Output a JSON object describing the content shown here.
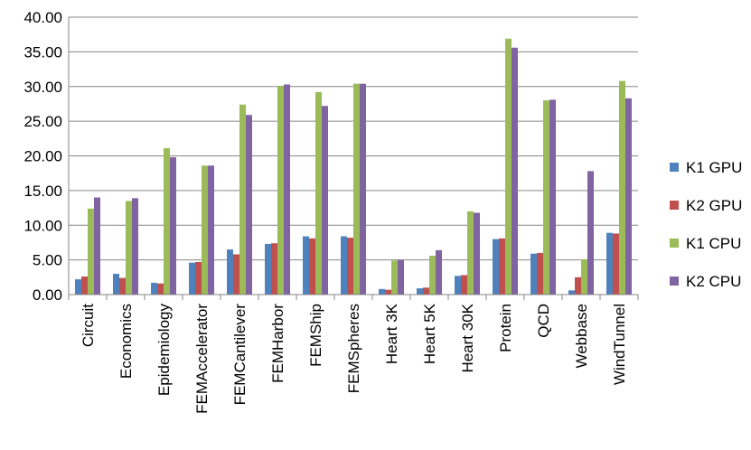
{
  "chart_data": {
    "type": "bar",
    "title": "",
    "xlabel": "",
    "ylabel": "",
    "ylim": [
      0,
      40
    ],
    "yticks": [
      "0.00",
      "5.00",
      "10.00",
      "15.00",
      "20.00",
      "25.00",
      "30.00",
      "35.00",
      "40.00"
    ],
    "grid": "horizontal",
    "legend": "right",
    "categories": [
      "Circuit",
      "Economics",
      "Epidemiology",
      "FEMAccelerator",
      "FEMCantilever",
      "FEMHarbor",
      "FEMShip",
      "FEMSpheres",
      "Heart 3K",
      "Heart 5K",
      "Heart 30K",
      "Protein",
      "QCD",
      "Webbase",
      "WindTunnel"
    ],
    "series": [
      {
        "name": "K1 GPU",
        "color": "#4F81BD",
        "values": [
          2.2,
          3.0,
          1.7,
          4.6,
          6.5,
          7.3,
          8.4,
          8.4,
          0.8,
          0.9,
          2.7,
          8.0,
          5.9,
          0.6,
          8.9
        ]
      },
      {
        "name": "K2 GPU",
        "color": "#C0504D",
        "values": [
          2.6,
          2.4,
          1.6,
          4.7,
          5.8,
          7.4,
          8.1,
          8.2,
          0.7,
          1.0,
          2.8,
          8.1,
          6.0,
          2.5,
          8.8
        ]
      },
      {
        "name": "K1 CPU",
        "color": "#9BBB59",
        "values": [
          12.4,
          13.5,
          21.1,
          18.6,
          27.4,
          30.1,
          29.2,
          30.4,
          4.9,
          5.6,
          12.0,
          36.9,
          28.0,
          5.1,
          30.8
        ]
      },
      {
        "name": "K2 CPU",
        "color": "#8064A2",
        "values": [
          14.0,
          13.9,
          19.8,
          18.6,
          25.9,
          30.3,
          27.2,
          30.4,
          5.0,
          6.4,
          11.8,
          35.6,
          28.1,
          17.8,
          28.3
        ]
      }
    ]
  }
}
